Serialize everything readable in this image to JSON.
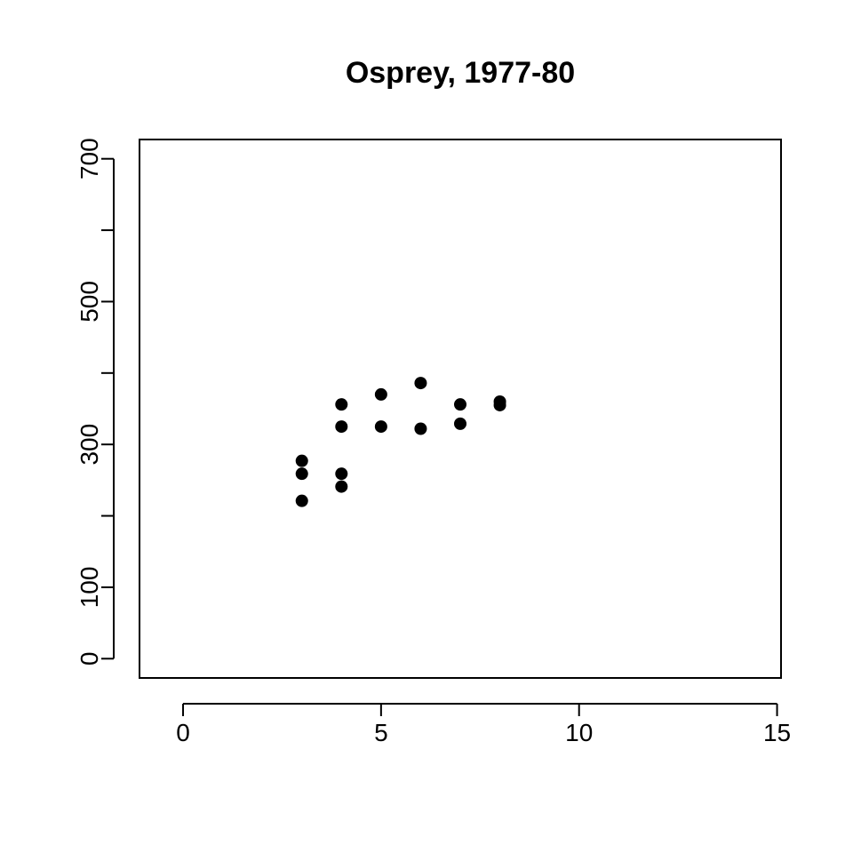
{
  "chart_data": {
    "type": "scatter",
    "title": "Osprey, 1977-80",
    "xlabel": "",
    "ylabel": "",
    "xlim": [
      -1.1,
      15.1
    ],
    "ylim": [
      -27,
      727
    ],
    "x_ticks": [
      0,
      5,
      10,
      15
    ],
    "y_ticks": [
      0,
      100,
      200,
      300,
      400,
      500,
      600,
      700
    ],
    "y_tick_labels": [
      "0",
      "100",
      "",
      "300",
      "",
      "500",
      "",
      "700"
    ],
    "grid": false,
    "legend": "none",
    "point_color": "#000000",
    "series": [
      {
        "points": [
          {
            "x": 3,
            "y": 277
          },
          {
            "x": 3,
            "y": 259
          },
          {
            "x": 3,
            "y": 221
          },
          {
            "x": 4,
            "y": 356
          },
          {
            "x": 4,
            "y": 325
          },
          {
            "x": 4,
            "y": 259
          },
          {
            "x": 4,
            "y": 241
          },
          {
            "x": 5,
            "y": 370
          },
          {
            "x": 5,
            "y": 325
          },
          {
            "x": 6,
            "y": 386
          },
          {
            "x": 6,
            "y": 322
          },
          {
            "x": 7,
            "y": 356
          },
          {
            "x": 7,
            "y": 329
          },
          {
            "x": 8,
            "y": 360
          },
          {
            "x": 8,
            "y": 355
          }
        ]
      }
    ]
  }
}
